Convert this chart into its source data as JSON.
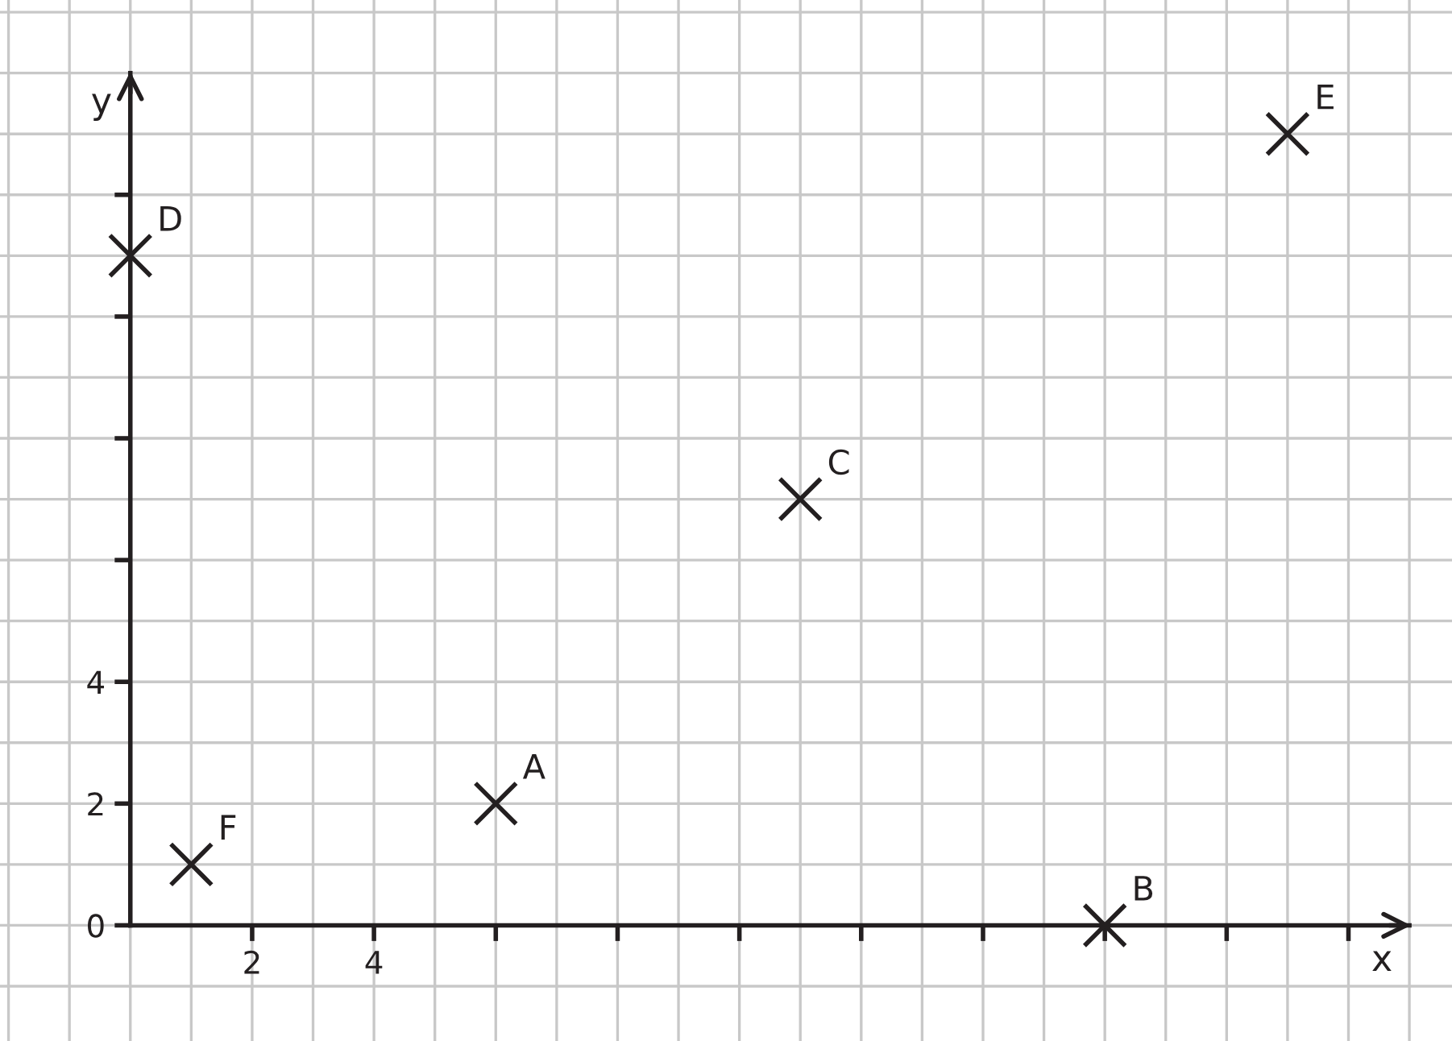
{
  "chart_data": {
    "type": "scatter",
    "xlabel": "x",
    "ylabel": "y",
    "xlim": [
      -2.14,
      21.7
    ],
    "ylim": [
      -1.9,
      15.2
    ],
    "xticks": [
      2,
      4,
      {
        "value": 6,
        "label": null
      },
      {
        "value": 8,
        "label": null
      },
      {
        "value": 10,
        "label": null
      },
      {
        "value": 12,
        "label": null
      },
      {
        "value": 14,
        "label": null
      },
      {
        "value": 16,
        "label": null
      },
      {
        "value": 18,
        "label": null
      },
      {
        "value": 20,
        "label": null
      }
    ],
    "yticks": [
      0,
      2,
      4,
      {
        "value": 6,
        "label": null
      },
      {
        "value": 8,
        "label": null
      },
      {
        "value": 10,
        "label": null
      },
      {
        "value": 12,
        "label": null
      }
    ],
    "grid": true,
    "marker": "cross",
    "series": [
      {
        "color": "#231f20",
        "x": [
          6,
          16,
          11,
          0,
          19,
          1
        ],
        "values": [
          2,
          0,
          7,
          11,
          13,
          1
        ]
      }
    ],
    "annotations": [
      {
        "text": "A",
        "x": 6,
        "y": 2
      },
      {
        "text": "B",
        "x": 16,
        "y": 0
      },
      {
        "text": "C",
        "x": 11,
        "y": 7
      },
      {
        "text": "D",
        "x": 0,
        "y": 11
      },
      {
        "text": "E",
        "x": 19,
        "y": 13
      },
      {
        "text": "F",
        "x": 1,
        "y": 1
      }
    ]
  }
}
